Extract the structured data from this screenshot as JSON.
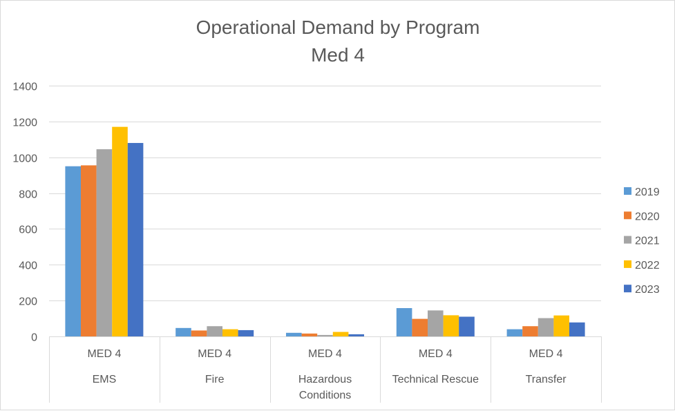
{
  "chart_data": {
    "type": "bar",
    "title": "Operational Demand by Program",
    "subtitle": "Med 4",
    "xlabel": "",
    "ylabel": "",
    "ylim": [
      0,
      1400
    ],
    "yticks": [
      0,
      200,
      400,
      600,
      800,
      1000,
      1200,
      1400
    ],
    "grid": true,
    "legend_position": "right",
    "categories": [
      {
        "group": "MED 4",
        "lines": [
          "EMS"
        ]
      },
      {
        "group": "MED 4",
        "lines": [
          "Fire"
        ]
      },
      {
        "group": "MED 4",
        "lines": [
          "Hazardous",
          "Conditions"
        ]
      },
      {
        "group": "MED 4",
        "lines": [
          "Technical Rescue"
        ]
      },
      {
        "group": "MED 4",
        "lines": [
          "Transfer"
        ]
      }
    ],
    "series": [
      {
        "name": "2019",
        "color": "#5b9bd5",
        "values": [
          950,
          47,
          20,
          158,
          40
        ]
      },
      {
        "name": "2020",
        "color": "#ed7d31",
        "values": [
          955,
          33,
          16,
          98,
          57
        ]
      },
      {
        "name": "2021",
        "color": "#a5a5a5",
        "values": [
          1045,
          57,
          8,
          145,
          102
        ]
      },
      {
        "name": "2022",
        "color": "#ffc000",
        "values": [
          1170,
          40,
          25,
          118,
          117
        ]
      },
      {
        "name": "2023",
        "color": "#4472c4",
        "values": [
          1080,
          35,
          12,
          110,
          78
        ]
      }
    ]
  }
}
